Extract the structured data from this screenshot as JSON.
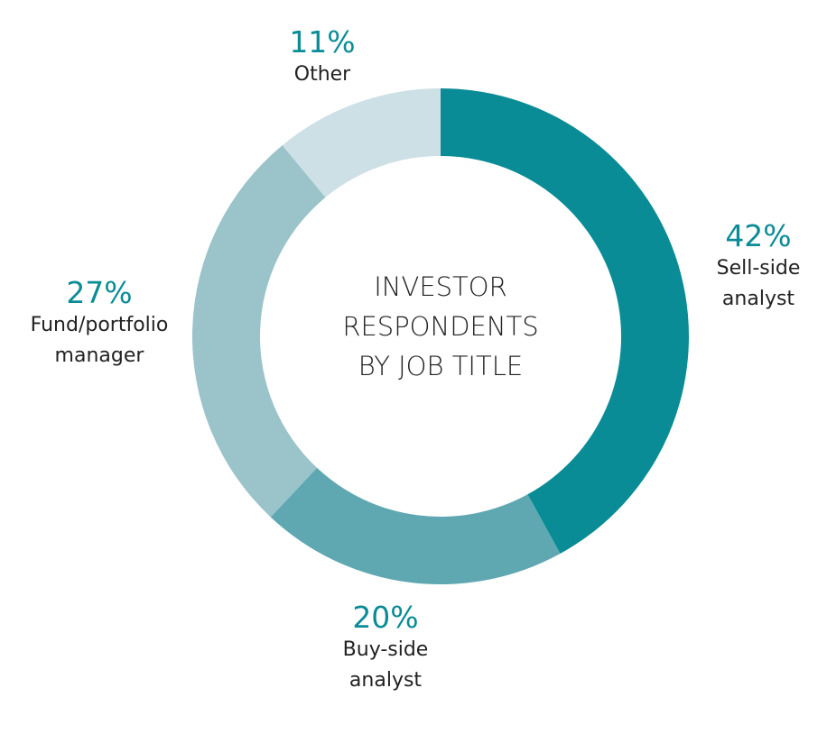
{
  "chart_data": {
    "type": "donut",
    "title": "INVESTOR RESPONDENTS BY JOB TITLE",
    "categories": [
      "Sell-side analyst",
      "Buy-side analyst",
      "Fund/portfolio manager",
      "Other"
    ],
    "values": [
      42,
      20,
      27,
      11
    ],
    "value_labels": [
      "42%",
      "20%",
      "27%",
      "11%"
    ],
    "colors": [
      "#0a8c96",
      "#5fa8b2",
      "#9ac3ca",
      "#cde0e6"
    ]
  }
}
